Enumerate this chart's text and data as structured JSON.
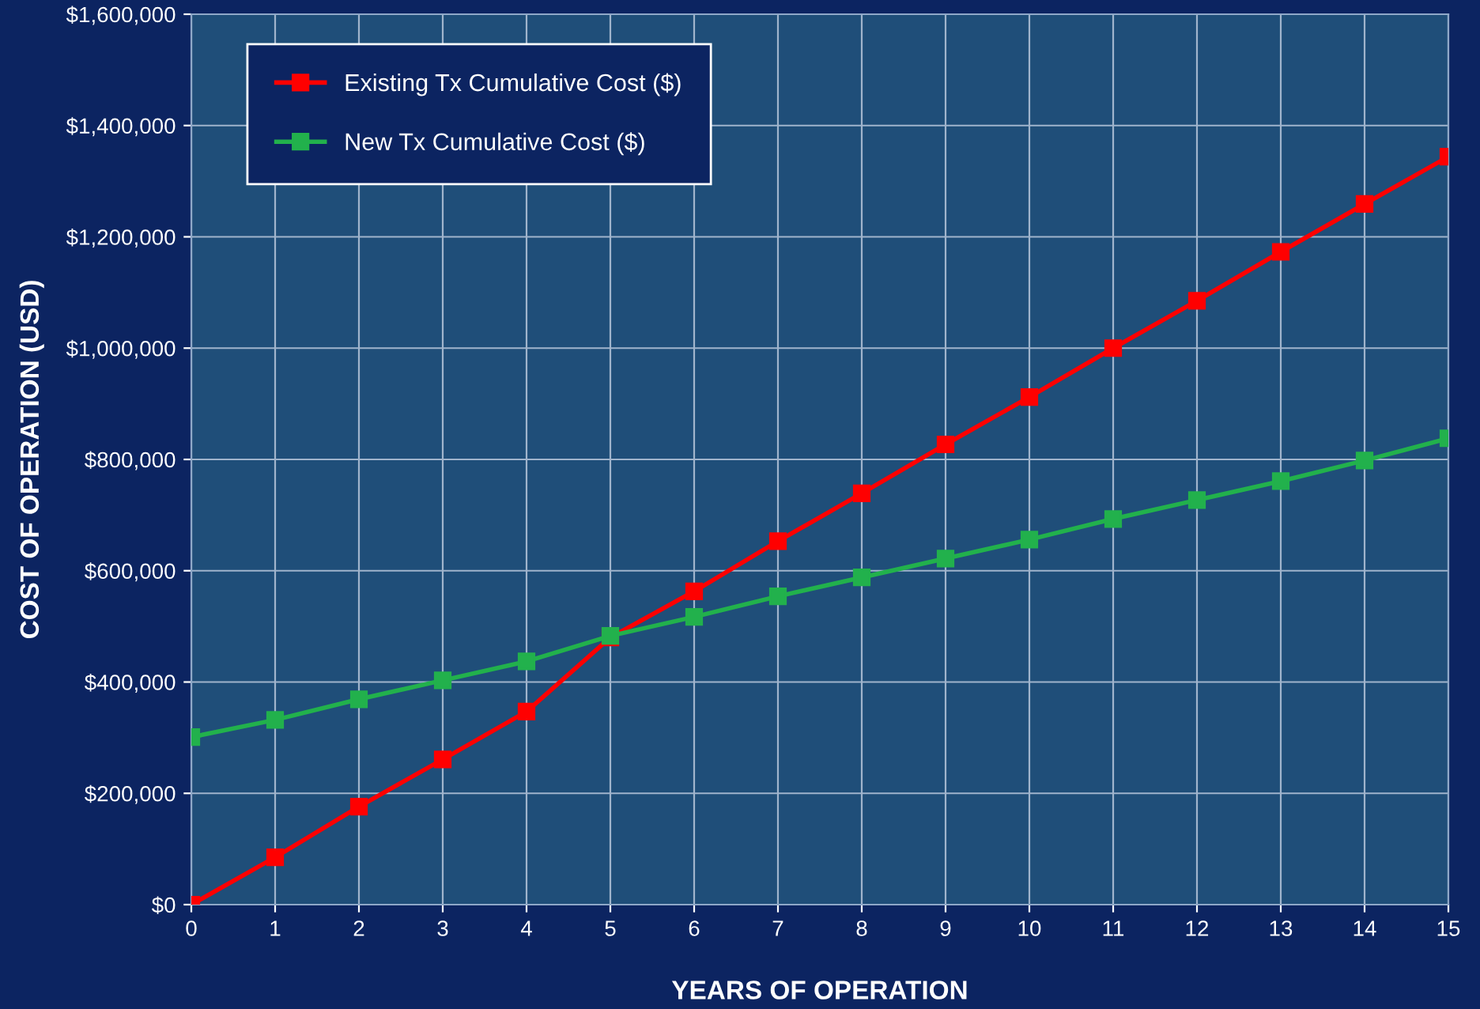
{
  "chart_data": {
    "type": "line",
    "xlabel": "YEARS OF OPERATION",
    "ylabel": "COST OF OPERATION (USD)",
    "x": [
      0,
      1,
      2,
      3,
      4,
      5,
      6,
      7,
      8,
      9,
      10,
      11,
      12,
      13,
      14,
      15
    ],
    "series": [
      {
        "name": "Existing Tx Cumulative Cost ($)",
        "color": "#ff0000",
        "values": [
          0,
          85000,
          176000,
          261000,
          347000,
          480000,
          563000,
          653000,
          739000,
          827000,
          912000,
          1000000,
          1085000,
          1173000,
          1259000,
          1344000
        ]
      },
      {
        "name": "New Tx Cumulative Cost ($)",
        "color": "#22b14c",
        "values": [
          301000,
          332000,
          369000,
          403000,
          437000,
          483000,
          517000,
          554000,
          588000,
          622000,
          656000,
          693000,
          727000,
          761000,
          798000,
          838000
        ]
      }
    ],
    "xlim": [
      0,
      15
    ],
    "xticks": [
      0,
      1,
      2,
      3,
      4,
      5,
      6,
      7,
      8,
      9,
      10,
      11,
      12,
      13,
      14,
      15
    ],
    "ylim": [
      0,
      1600000
    ],
    "yticks": [
      {
        "value": 0,
        "label": "$0"
      },
      {
        "value": 200000,
        "label": "$200,000"
      },
      {
        "value": 400000,
        "label": "$400,000"
      },
      {
        "value": 600000,
        "label": "$600,000"
      },
      {
        "value": 800000,
        "label": "$800,000"
      },
      {
        "value": 1000000,
        "label": "$1,000,000"
      },
      {
        "value": 1200000,
        "label": "$1,200,000"
      },
      {
        "value": 1400000,
        "label": "$1,400,000"
      },
      {
        "value": 1600000,
        "label": "$1,600,000"
      }
    ],
    "grid": true,
    "legend": "top left",
    "marker": "square",
    "line_style": "solid"
  }
}
